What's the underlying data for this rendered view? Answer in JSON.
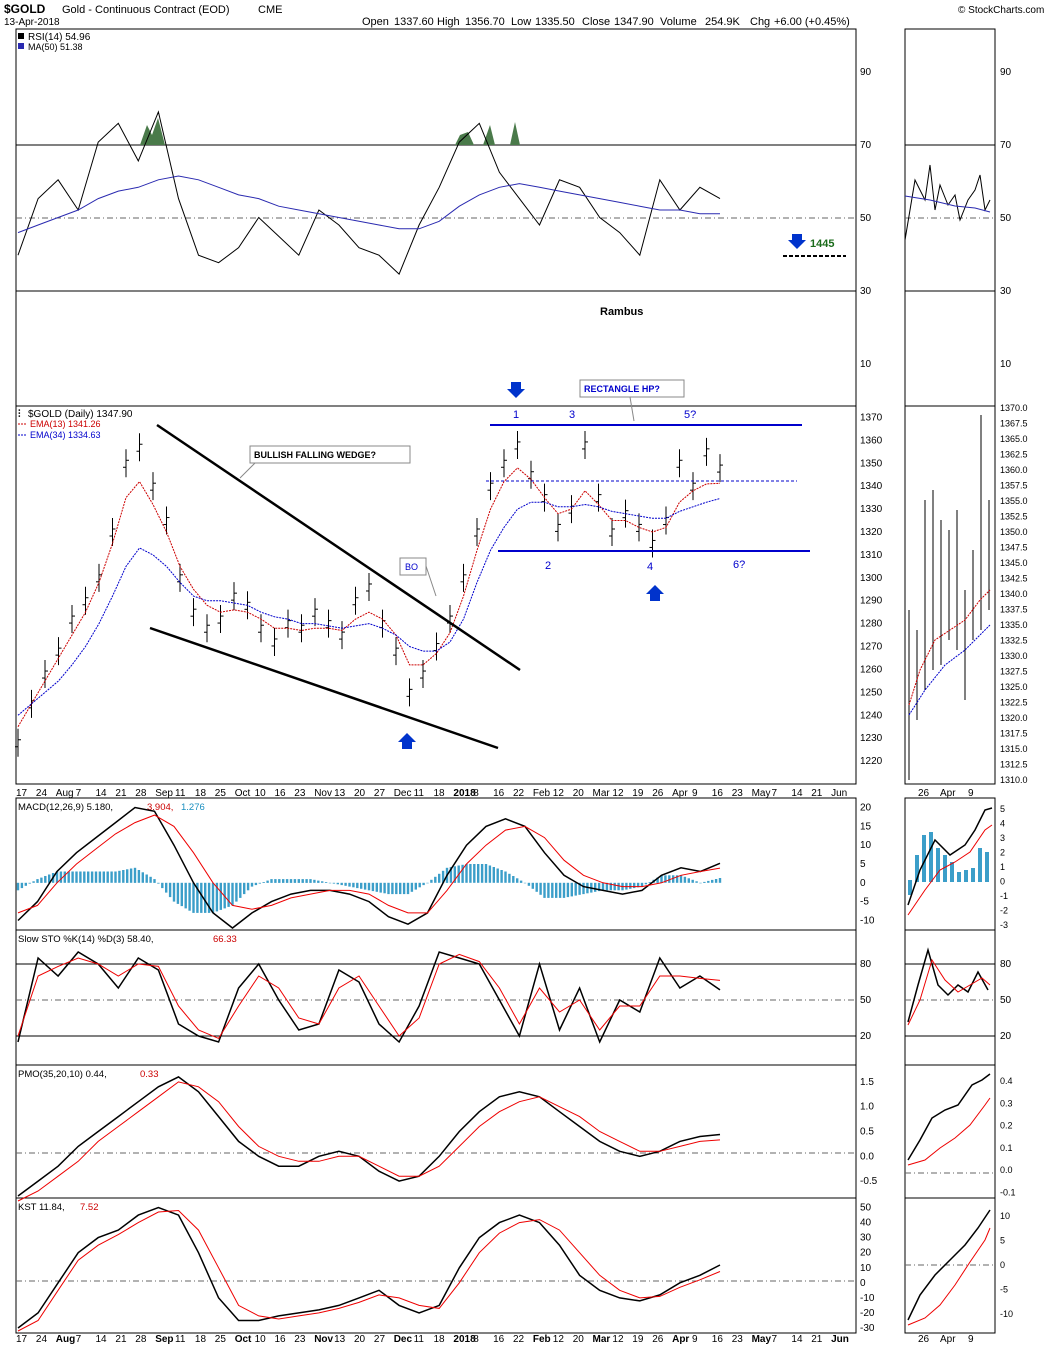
{
  "header": {
    "symbol": "$GOLD",
    "name": "Gold - Continuous Contract (EOD)",
    "exchange": "CME",
    "date": "13-Apr-2018",
    "open_label": "Open",
    "open": "1337.60",
    "high_label": "High",
    "high": "1356.70",
    "low_label": "Low",
    "low": "1335.50",
    "close_label": "Close",
    "close": "1347.90",
    "volume_label": "Volume",
    "volume": "254.9K",
    "chg_label": "Chg",
    "chg": "+6.00 (+0.45%)",
    "watermark": "© StockCharts.com",
    "author": "Rambus"
  },
  "rsi_panel": {
    "legend_rsi": "RSI(14) 54.96",
    "legend_ma": "MA(50) 51.38",
    "ticks": [
      "90",
      "70",
      "50",
      "30",
      "10"
    ],
    "target_label": "1445"
  },
  "price_panel": {
    "legend_title": "$GOLD (Daily) 1347.90",
    "legend_ema13": "EMA(13) 1341.26",
    "legend_ema34": "EMA(34) 1334.63",
    "ticks": [
      "1370",
      "1360",
      "1350",
      "1340",
      "1330",
      "1320",
      "1310",
      "1300",
      "1290",
      "1280",
      "1270",
      "1260",
      "1250",
      "1240",
      "1230",
      "1220"
    ],
    "right_ticks": [
      "1370.0",
      "1367.5",
      "1365.0",
      "1362.5",
      "1360.0",
      "1357.5",
      "1355.0",
      "1352.5",
      "1350.0",
      "1347.5",
      "1345.0",
      "1342.5",
      "1340.0",
      "1337.5",
      "1335.0",
      "1332.5",
      "1330.0",
      "1327.5",
      "1325.0",
      "1322.5",
      "1320.0",
      "1317.5",
      "1315.0",
      "1312.5",
      "1310.0"
    ],
    "annotations": {
      "wedge": "BULLISH FALLING WEDGE?",
      "bo": "BO",
      "rect": "RECTANGLE HP?",
      "p1": "1",
      "p2": "2",
      "p3": "3",
      "p4": "4",
      "p5": "5?",
      "p6": "6?"
    }
  },
  "macd_panel": {
    "legend_a": "MACD(12,26,9) 5.180,",
    "legend_b": "3.904,",
    "legend_c": "1.276",
    "ticks": [
      "20",
      "15",
      "10",
      "5",
      "0",
      "-5",
      "-10"
    ],
    "right_ticks": [
      "5",
      "4",
      "3",
      "2",
      "1",
      "0",
      "-1",
      "-2",
      "-3"
    ]
  },
  "sto_panel": {
    "legend_a": "Slow STO %K(14) %D(3) 58.40,",
    "legend_b": "66.33",
    "ticks": [
      "80",
      "50",
      "20"
    ]
  },
  "pmo_panel": {
    "legend_a": "PMO(35,20,10) 0.44,",
    "legend_b": "0.33",
    "ticks": [
      "1.5",
      "1.0",
      "0.5",
      "0.0",
      "-0.5"
    ],
    "right_ticks": [
      "0.4",
      "0.3",
      "0.2",
      "0.1",
      "0.0",
      "-0.1"
    ]
  },
  "kst_panel": {
    "legend_a": "KST 11.84,",
    "legend_b": "7.52",
    "ticks": [
      "50",
      "40",
      "30",
      "20",
      "10",
      "0",
      "-10",
      "-20",
      "-30"
    ],
    "right_ticks": [
      "10",
      "5",
      "0",
      "-5",
      "-10"
    ]
  },
  "x_axis": {
    "labels": [
      "17",
      "24",
      "Aug",
      "7",
      "14",
      "21",
      "28",
      "Sep",
      "11",
      "18",
      "25",
      "Oct",
      "10",
      "16",
      "23",
      "Nov",
      "13",
      "20",
      "27",
      "Dec",
      "11",
      "18",
      "2018",
      "8",
      "16",
      "22",
      "Feb",
      "12",
      "20",
      "Mar",
      "12",
      "19",
      "26",
      "Apr",
      "9",
      "16",
      "23",
      "May",
      "7",
      "14",
      "21",
      "Jun"
    ],
    "right_labels": [
      "26",
      "Apr",
      "9"
    ]
  },
  "chart_data": [
    {
      "type": "line",
      "title": "RSI(14)",
      "series": [
        {
          "name": "RSI(14)",
          "values": [
            40,
            55,
            60,
            52,
            70,
            75,
            65,
            78,
            55,
            40,
            38,
            42,
            50,
            45,
            40,
            52,
            48,
            42,
            40,
            35,
            48,
            58,
            70,
            75,
            62,
            55,
            48,
            60,
            58,
            50,
            46,
            40,
            60,
            52,
            58,
            55
          ]
        },
        {
          "name": "MA(50)",
          "values": [
            46,
            48,
            50,
            52,
            55,
            57,
            58,
            60,
            61,
            60,
            58,
            56,
            55,
            53,
            52,
            51,
            50,
            49,
            48,
            47,
            47,
            49,
            53,
            56,
            58,
            59,
            58,
            57,
            56,
            55,
            54,
            53,
            52,
            52,
            51,
            51
          ]
        }
      ],
      "ylim": [
        0,
        100
      ]
    },
    {
      "type": "line",
      "title": "$GOLD (Daily)",
      "series": [
        {
          "name": "$GOLD",
          "values": [
            1228,
            1245,
            1258,
            1268,
            1282,
            1290,
            1300,
            1320,
            1350,
            1357,
            1340,
            1325,
            1300,
            1285,
            1278,
            1282,
            1292,
            1288,
            1278,
            1272,
            1280,
            1278,
            1285,
            1280,
            1275,
            1290,
            1296,
            1280,
            1268,
            1250,
            1258,
            1270,
            1282,
            1300,
            1320,
            1340,
            1350,
            1358,
            1345,
            1335,
            1322,
            1330,
            1358,
            1335,
            1320,
            1328,
            1322,
            1315,
            1325,
            1350,
            1340,
            1355,
            1347.9
          ]
        },
        {
          "name": "EMA(13)",
          "values": [
            1235,
            1245,
            1255,
            1265,
            1275,
            1285,
            1298,
            1315,
            1335,
            1342,
            1332,
            1320,
            1305,
            1295,
            1288,
            1285,
            1286,
            1285,
            1282,
            1278,
            1278,
            1277,
            1278,
            1278,
            1277,
            1282,
            1285,
            1282,
            1275,
            1262,
            1262,
            1267,
            1276,
            1292,
            1312,
            1330,
            1342,
            1348,
            1343,
            1335,
            1328,
            1330,
            1338,
            1332,
            1325,
            1325,
            1322,
            1320,
            1322,
            1333,
            1338,
            1341,
            1341.26
          ]
        },
        {
          "name": "EMA(34)",
          "values": [
            1240,
            1245,
            1250,
            1255,
            1262,
            1270,
            1280,
            1292,
            1305,
            1313,
            1310,
            1305,
            1298,
            1292,
            1290,
            1290,
            1289,
            1288,
            1285,
            1283,
            1282,
            1280,
            1280,
            1279,
            1278,
            1279,
            1280,
            1278,
            1275,
            1270,
            1268,
            1268,
            1272,
            1282,
            1298,
            1312,
            1322,
            1330,
            1333,
            1333,
            1331,
            1331,
            1332,
            1331,
            1329,
            1328,
            1327,
            1326,
            1326,
            1329,
            1331,
            1333,
            1334.63
          ]
        }
      ],
      "ylim": [
        1210,
        1375
      ]
    },
    {
      "type": "line",
      "title": "MACD(12,26,9)",
      "series": [
        {
          "name": "MACD",
          "values": [
            -10,
            -5,
            3,
            8,
            12,
            16,
            20,
            19,
            10,
            0,
            -8,
            -12,
            -8,
            -5,
            -3,
            -2,
            -2,
            -3,
            -5,
            -9,
            -11,
            -8,
            2,
            10,
            15,
            17,
            15,
            8,
            2,
            -1,
            -2,
            -3,
            -2,
            2,
            4,
            3,
            5.18
          ]
        },
        {
          "name": "Signal",
          "values": [
            -8,
            -6,
            0,
            5,
            9,
            13,
            16,
            18,
            15,
            8,
            0,
            -6,
            -7,
            -6,
            -4,
            -3,
            -2,
            -2,
            -3,
            -6,
            -8,
            -8,
            -2,
            5,
            10,
            14,
            15,
            12,
            6,
            2,
            0,
            -1,
            -1,
            0,
            2,
            3,
            3.904
          ]
        },
        {
          "name": "Histogram",
          "values": [
            -2,
            1,
            3,
            3,
            3,
            3,
            4,
            1,
            -5,
            -8,
            -8,
            -6,
            -1,
            1,
            1,
            1,
            0,
            -1,
            -2,
            -3,
            -3,
            0,
            4,
            5,
            5,
            3,
            0,
            -4,
            -4,
            -3,
            -2,
            -2,
            -1,
            2,
            2,
            0,
            1.276
          ]
        }
      ],
      "ylim": [
        -12,
        22
      ]
    },
    {
      "type": "line",
      "title": "Slow STO %K(14) %D(3)",
      "series": [
        {
          "name": "%K",
          "values": [
            15,
            85,
            70,
            90,
            80,
            60,
            85,
            75,
            30,
            20,
            15,
            60,
            80,
            50,
            25,
            30,
            75,
            65,
            30,
            15,
            45,
            90,
            85,
            80,
            50,
            20,
            80,
            25,
            60,
            15,
            50,
            40,
            85,
            60,
            70,
            58.4
          ]
        },
        {
          "name": "%D",
          "values": [
            20,
            70,
            78,
            85,
            80,
            70,
            80,
            78,
            45,
            25,
            18,
            45,
            70,
            60,
            35,
            30,
            60,
            70,
            45,
            20,
            35,
            80,
            88,
            82,
            60,
            30,
            60,
            40,
            50,
            25,
            45,
            45,
            70,
            70,
            68,
            66.33
          ]
        }
      ],
      "ylim": [
        0,
        100
      ]
    },
    {
      "type": "line",
      "title": "PMO(35,20,10)",
      "series": [
        {
          "name": "PMO",
          "values": [
            -0.8,
            -0.5,
            -0.2,
            0.2,
            0.5,
            0.8,
            1.1,
            1.4,
            1.6,
            1.3,
            0.8,
            0.3,
            0.0,
            -0.2,
            -0.2,
            0.0,
            0.1,
            0.0,
            -0.3,
            -0.5,
            -0.4,
            0.0,
            0.5,
            0.9,
            1.2,
            1.3,
            1.2,
            0.9,
            0.6,
            0.3,
            0.1,
            0.0,
            0.1,
            0.3,
            0.4,
            0.44
          ]
        },
        {
          "name": "Signal",
          "values": [
            -0.9,
            -0.7,
            -0.4,
            -0.1,
            0.3,
            0.6,
            0.9,
            1.2,
            1.5,
            1.4,
            1.1,
            0.6,
            0.2,
            0.0,
            -0.1,
            -0.1,
            0.0,
            0.0,
            -0.2,
            -0.4,
            -0.4,
            -0.2,
            0.2,
            0.6,
            0.9,
            1.1,
            1.2,
            1.0,
            0.8,
            0.5,
            0.3,
            0.1,
            0.1,
            0.2,
            0.3,
            0.33
          ]
        }
      ],
      "ylim": [
        -0.8,
        1.8
      ]
    },
    {
      "type": "line",
      "title": "KST",
      "series": [
        {
          "name": "KST",
          "values": [
            -30,
            -20,
            0,
            20,
            30,
            35,
            45,
            50,
            45,
            20,
            -10,
            -25,
            -25,
            -22,
            -20,
            -18,
            -15,
            -10,
            -5,
            -15,
            -20,
            -15,
            10,
            30,
            40,
            45,
            40,
            25,
            5,
            -5,
            -10,
            -12,
            -8,
            0,
            5,
            11.84
          ]
        },
        {
          "name": "Signal",
          "values": [
            -32,
            -25,
            -5,
            15,
            25,
            32,
            40,
            47,
            48,
            35,
            10,
            -15,
            -22,
            -24,
            -22,
            -20,
            -17,
            -13,
            -8,
            -10,
            -15,
            -17,
            0,
            20,
            33,
            40,
            42,
            35,
            20,
            5,
            -5,
            -10,
            -9,
            -3,
            2,
            7.52
          ]
        }
      ],
      "ylim": [
        -32,
        55
      ]
    }
  ]
}
